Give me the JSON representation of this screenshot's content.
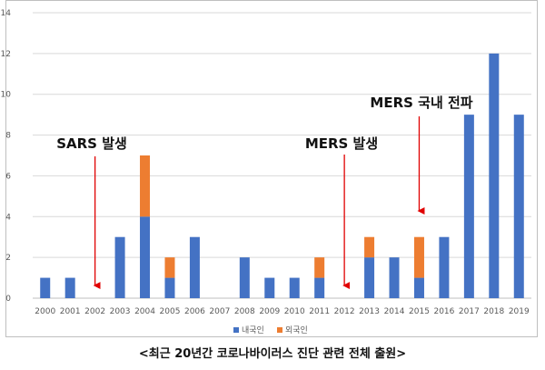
{
  "caption": "<최근 20년간 코로나바이러스 진단 관련 전체 출원>",
  "colors": {
    "domestic": "#4472C4",
    "foreign": "#ED7D31",
    "arrow": "#E00000",
    "grid": "#D9D9D9",
    "axis": "#BFBFBF"
  },
  "chart_data": {
    "type": "bar",
    "stacked": true,
    "categories": [
      "2000",
      "2001",
      "2002",
      "2003",
      "2004",
      "2005",
      "2006",
      "2007",
      "2008",
      "2009",
      "2010",
      "2011",
      "2012",
      "2013",
      "2014",
      "2015",
      "2016",
      "2017",
      "2018",
      "2019"
    ],
    "series": [
      {
        "name": "내국인",
        "color": "#4472C4",
        "values": [
          1,
          1,
          0,
          3,
          4,
          1,
          3,
          0,
          2,
          1,
          1,
          1,
          0,
          2,
          2,
          1,
          3,
          9,
          12,
          9
        ]
      },
      {
        "name": "외국인",
        "color": "#ED7D31",
        "values": [
          0,
          0,
          0,
          0,
          3,
          1,
          0,
          0,
          0,
          0,
          0,
          1,
          0,
          1,
          0,
          2,
          0,
          0,
          0,
          0
        ]
      }
    ],
    "ylim": [
      0,
      14
    ],
    "yticks": [
      "0",
      "2",
      "4",
      "6",
      "8",
      "10",
      "12",
      "14"
    ],
    "grid": true,
    "legend": "bottom",
    "annotations": [
      {
        "text": "SARS 발생",
        "category": "2002"
      },
      {
        "text": "MERS 발생",
        "category": "2012"
      },
      {
        "text": "MERS 국내 전파",
        "category": "2015"
      }
    ]
  }
}
